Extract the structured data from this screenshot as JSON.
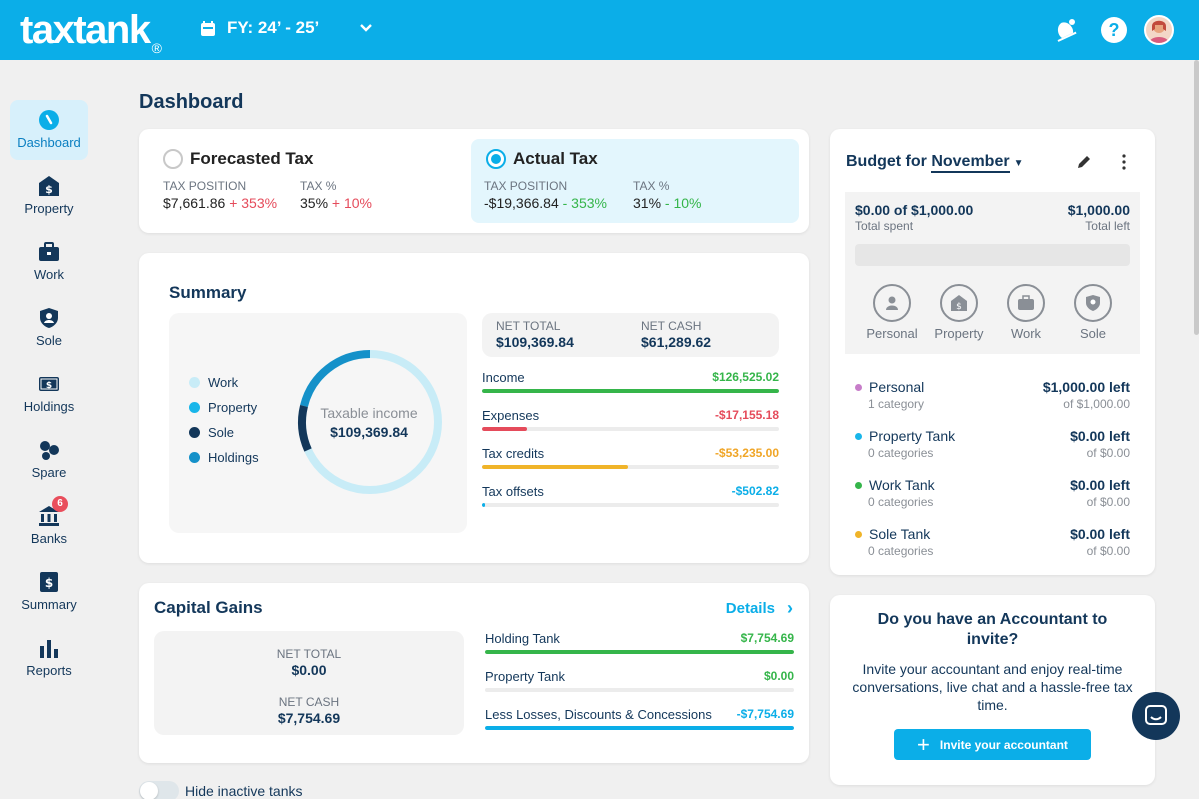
{
  "app": {
    "logo": "taxtank",
    "logo_mark": "®",
    "fy_label": "FY: 24’ - 25’"
  },
  "sidebar": {
    "items": [
      {
        "label": "Dashboard",
        "icon": "dashboard-icon",
        "active": true
      },
      {
        "label": "Property",
        "icon": "property-icon"
      },
      {
        "label": "Work",
        "icon": "work-icon"
      },
      {
        "label": "Sole",
        "icon": "sole-icon"
      },
      {
        "label": "Holdings",
        "icon": "holdings-icon"
      },
      {
        "label": "Spare",
        "icon": "spare-icon"
      },
      {
        "label": "Banks",
        "icon": "banks-icon",
        "badge": "6"
      },
      {
        "label": "Summary",
        "icon": "summary-icon"
      },
      {
        "label": "Reports",
        "icon": "reports-icon"
      }
    ]
  },
  "page": {
    "title": "Dashboard"
  },
  "tax": {
    "forecasted": {
      "title": "Forecasted Tax",
      "pos_label": "TAX POSITION",
      "pos_value": "$7,661.86",
      "pos_change": "+ 353%",
      "pct_label": "TAX %",
      "pct_value": "35%",
      "pct_change": "+ 10%"
    },
    "actual": {
      "title": "Actual Tax",
      "pos_label": "TAX POSITION",
      "pos_value": "-$19,366.84",
      "pos_change": "- 353%",
      "pct_label": "TAX %",
      "pct_value": "31%",
      "pct_change": "- 10%"
    }
  },
  "summary": {
    "title": "Summary",
    "legend": [
      {
        "label": "Work",
        "color": "#c8ecf7"
      },
      {
        "label": "Property",
        "color": "#19b6ea"
      },
      {
        "label": "Sole",
        "color": "#13375a"
      },
      {
        "label": "Holdings",
        "color": "#1591c9"
      }
    ],
    "donut_label": "Taxable income",
    "donut_value": "$109,369.84",
    "net_total_label": "NET TOTAL",
    "net_total_value": "$109,369.84",
    "net_cash_label": "NET CASH",
    "net_cash_value": "$61,289.62",
    "rows": [
      {
        "name": "Income",
        "amount": "$126,525.02",
        "fill": 100,
        "color": "#35b54a"
      },
      {
        "name": "Expenses",
        "amount": "-$17,155.18",
        "fill": 15,
        "color": "#e54b5b"
      },
      {
        "name": "Tax credits",
        "amount": "-$53,235.00",
        "fill": 49,
        "color": "#f0b429"
      },
      {
        "name": "Tax offsets",
        "amount": "-$502.82",
        "fill": 1,
        "color": "#0baee8"
      }
    ]
  },
  "capital_gains": {
    "title": "Capital Gains",
    "details": "Details",
    "net_total_label": "NET TOTAL",
    "net_total_value": "$0.00",
    "net_cash_label": "NET CASH",
    "net_cash_value": "$7,754.69",
    "rows": [
      {
        "name": "Holding Tank",
        "amount": "$7,754.69",
        "fill": 100,
        "color": "#35b54a"
      },
      {
        "name": "Property Tank",
        "amount": "$0.00",
        "fill": 0,
        "color": "#35b54a"
      },
      {
        "name": "Less Losses, Discounts & Concessions",
        "amount": "-$7,754.69",
        "fill": 100,
        "color": "#0baee8"
      }
    ]
  },
  "toggle": {
    "label": "Hide inactive tanks"
  },
  "budget": {
    "title_prefix": "Budget for",
    "month": "November",
    "spent": "$0.00 of $1,000.00",
    "spent_label": "Total spent",
    "left": "$1,000.00",
    "left_label": "Total left",
    "categories": [
      {
        "label": "Personal",
        "icon": "person-icon"
      },
      {
        "label": "Property",
        "icon": "property-icon"
      },
      {
        "label": "Work",
        "icon": "work-icon"
      },
      {
        "label": "Sole",
        "icon": "sole-icon"
      }
    ],
    "rows": [
      {
        "name": "Personal",
        "sub": "1 category",
        "left": "$1,000.00 left",
        "of": "of $1,000.00",
        "color": "#c77dc9"
      },
      {
        "name": "Property Tank",
        "sub": "0 categories",
        "left": "$0.00 left",
        "of": "of $0.00",
        "color": "#19b6ea"
      },
      {
        "name": "Work Tank",
        "sub": "0 categories",
        "left": "$0.00 left",
        "of": "of $0.00",
        "color": "#35b54a"
      },
      {
        "name": "Sole Tank",
        "sub": "0 categories",
        "left": "$0.00 left",
        "of": "of $0.00",
        "color": "#f0b429"
      }
    ]
  },
  "accountant": {
    "title": "Do you have an Accountant to invite?",
    "text": "Invite your accountant and enjoy real-time conversations, live chat and a hassle-free tax time.",
    "button": "Invite your accountant"
  }
}
